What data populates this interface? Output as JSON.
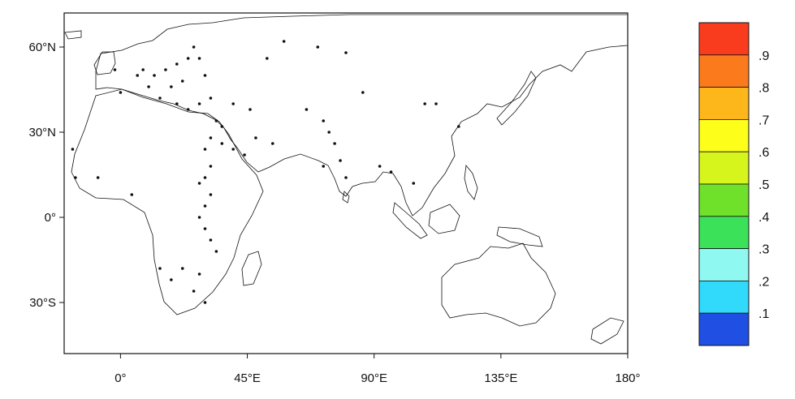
{
  "map": {
    "lat_labels": [
      "60°N",
      "30°N",
      "0°",
      "30°S"
    ],
    "lon_labels": [
      "0°",
      "45°E",
      "90°E",
      "135°E",
      "180°"
    ],
    "lat_values": [
      60,
      30,
      0,
      -30
    ],
    "lon_values": [
      0,
      45,
      90,
      135,
      180
    ],
    "extent": {
      "lon_min": -20,
      "lon_max": 180,
      "lat_min": -48,
      "lat_max": 72
    }
  },
  "colorbar": {
    "labels": [
      ".9",
      ".8",
      ".7",
      ".6",
      ".5",
      ".4",
      ".3",
      ".2",
      ".1"
    ],
    "colors": [
      "#fa3c1e",
      "#fb7a1c",
      "#fdb71a",
      "#fefe1b",
      "#d6f51d",
      "#6fe12b",
      "#3ce15a",
      "#8ff8f0",
      "#31d9fb",
      "#1f4fe3"
    ]
  },
  "stations": [
    [
      -8,
      14
    ],
    [
      -16,
      14
    ],
    [
      -17,
      24
    ],
    [
      4,
      8
    ],
    [
      -2,
      52
    ],
    [
      0,
      44
    ],
    [
      8,
      52
    ],
    [
      12,
      50
    ],
    [
      16,
      52
    ],
    [
      20,
      54
    ],
    [
      24,
      56
    ],
    [
      26,
      60
    ],
    [
      28,
      56
    ],
    [
      30,
      50
    ],
    [
      22,
      48
    ],
    [
      18,
      46
    ],
    [
      10,
      46
    ],
    [
      6,
      50
    ],
    [
      14,
      42
    ],
    [
      20,
      40
    ],
    [
      24,
      38
    ],
    [
      28,
      40
    ],
    [
      32,
      42
    ],
    [
      34,
      34
    ],
    [
      36,
      32
    ],
    [
      32,
      28
    ],
    [
      30,
      24
    ],
    [
      32,
      18
    ],
    [
      30,
      14
    ],
    [
      28,
      12
    ],
    [
      32,
      8
    ],
    [
      30,
      4
    ],
    [
      28,
      0
    ],
    [
      30,
      -4
    ],
    [
      32,
      -8
    ],
    [
      34,
      -12
    ],
    [
      28,
      -20
    ],
    [
      22,
      -18
    ],
    [
      14,
      -18
    ],
    [
      26,
      -26
    ],
    [
      30,
      -30
    ],
    [
      18,
      -22
    ],
    [
      36,
      26
    ],
    [
      40,
      24
    ],
    [
      44,
      22
    ],
    [
      48,
      28
    ],
    [
      54,
      26
    ],
    [
      46,
      38
    ],
    [
      40,
      40
    ],
    [
      52,
      56
    ],
    [
      58,
      62
    ],
    [
      70,
      60
    ],
    [
      80,
      58
    ],
    [
      66,
      38
    ],
    [
      72,
      34
    ],
    [
      74,
      30
    ],
    [
      76,
      26
    ],
    [
      78,
      20
    ],
    [
      80,
      14
    ],
    [
      86,
      44
    ],
    [
      72,
      18
    ],
    [
      92,
      18
    ],
    [
      96,
      16
    ],
    [
      104,
      12
    ],
    [
      108,
      40
    ],
    [
      112,
      40
    ],
    [
      120,
      32
    ]
  ]
}
